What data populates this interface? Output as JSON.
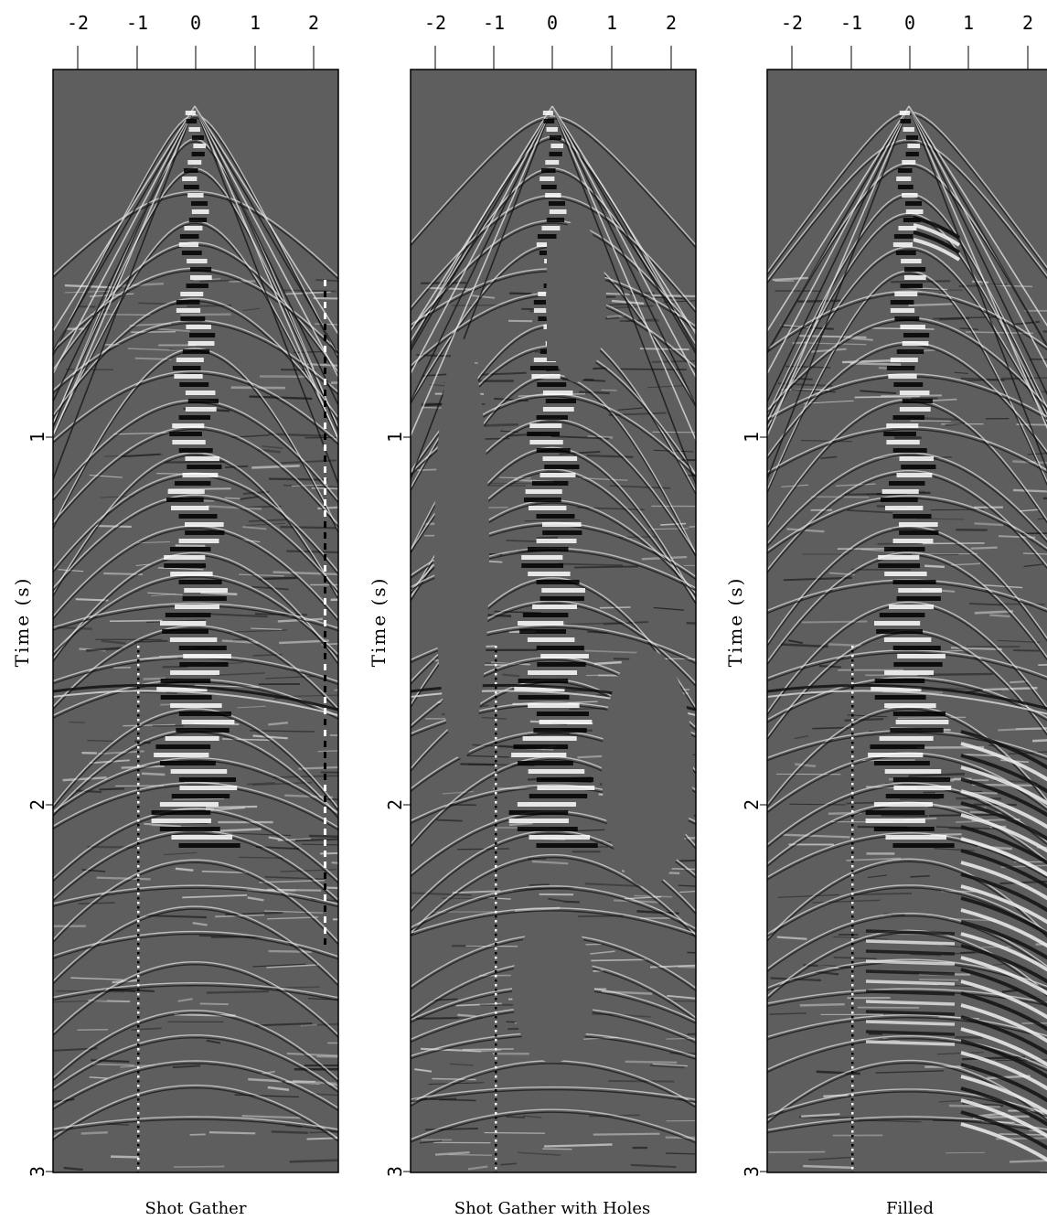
{
  "panels": [
    {
      "title": "Shot Gather",
      "y_label": "Time (s)"
    },
    {
      "title": "Shot Gather with Holes",
      "y_label": "Time (s)"
    },
    {
      "title": "Filled",
      "y_label": "Time (s)"
    }
  ],
  "axes": {
    "x_ticks": [
      "-2",
      "-1",
      "0",
      "1",
      "2"
    ],
    "y_ticks": [
      "1",
      "2",
      "3"
    ]
  },
  "colors": {
    "background": "#5e5e5e",
    "frame": "#000000"
  }
}
